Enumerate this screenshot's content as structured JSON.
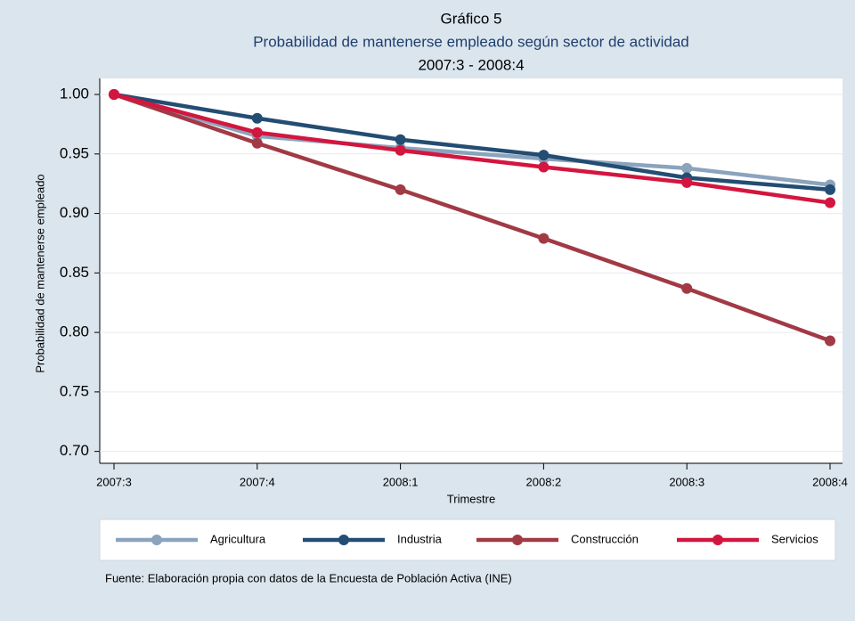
{
  "chart_data": {
    "type": "line",
    "title": "Gráfico 5",
    "subtitle": "Probabilidad de mantenerse empleado según sector de actividad",
    "period": "2007:3 - 2008:4",
    "y_label": "Probabilidad de mantenerse empleado",
    "x_label": "Trimestre",
    "source": "Fuente: Elaboración propia con datos de la Encuesta de Población Activa (INE)",
    "categories": [
      "2007:3",
      "2007:4",
      "2008:1",
      "2008:2",
      "2008:3",
      "2008:4"
    ],
    "series": [
      {
        "name": "Agricultura",
        "color": "#8ba3bd",
        "values": [
          1.0,
          0.965,
          0.955,
          0.946,
          0.938,
          0.924
        ]
      },
      {
        "name": "Industria",
        "color": "#234d73",
        "values": [
          1.0,
          0.98,
          0.962,
          0.949,
          0.93,
          0.92
        ]
      },
      {
        "name": "Construcción",
        "color": "#a13a45",
        "values": [
          1.0,
          0.959,
          0.92,
          0.879,
          0.837,
          0.793
        ]
      },
      {
        "name": "Servicios",
        "color": "#d3163f",
        "values": [
          1.0,
          0.968,
          0.953,
          0.939,
          0.926,
          0.909
        ]
      }
    ],
    "ylim": [
      0.69,
      1.0135
    ],
    "yticks": [
      {
        "value": 0.7,
        "label": "0.70"
      },
      0.75,
      {
        "value": 0.8,
        "label": "0.80"
      },
      0.85,
      {
        "value": 0.9,
        "label": "0.90"
      },
      0.95,
      {
        "value": 1.0,
        "label": "1.00"
      }
    ],
    "grid": true
  }
}
